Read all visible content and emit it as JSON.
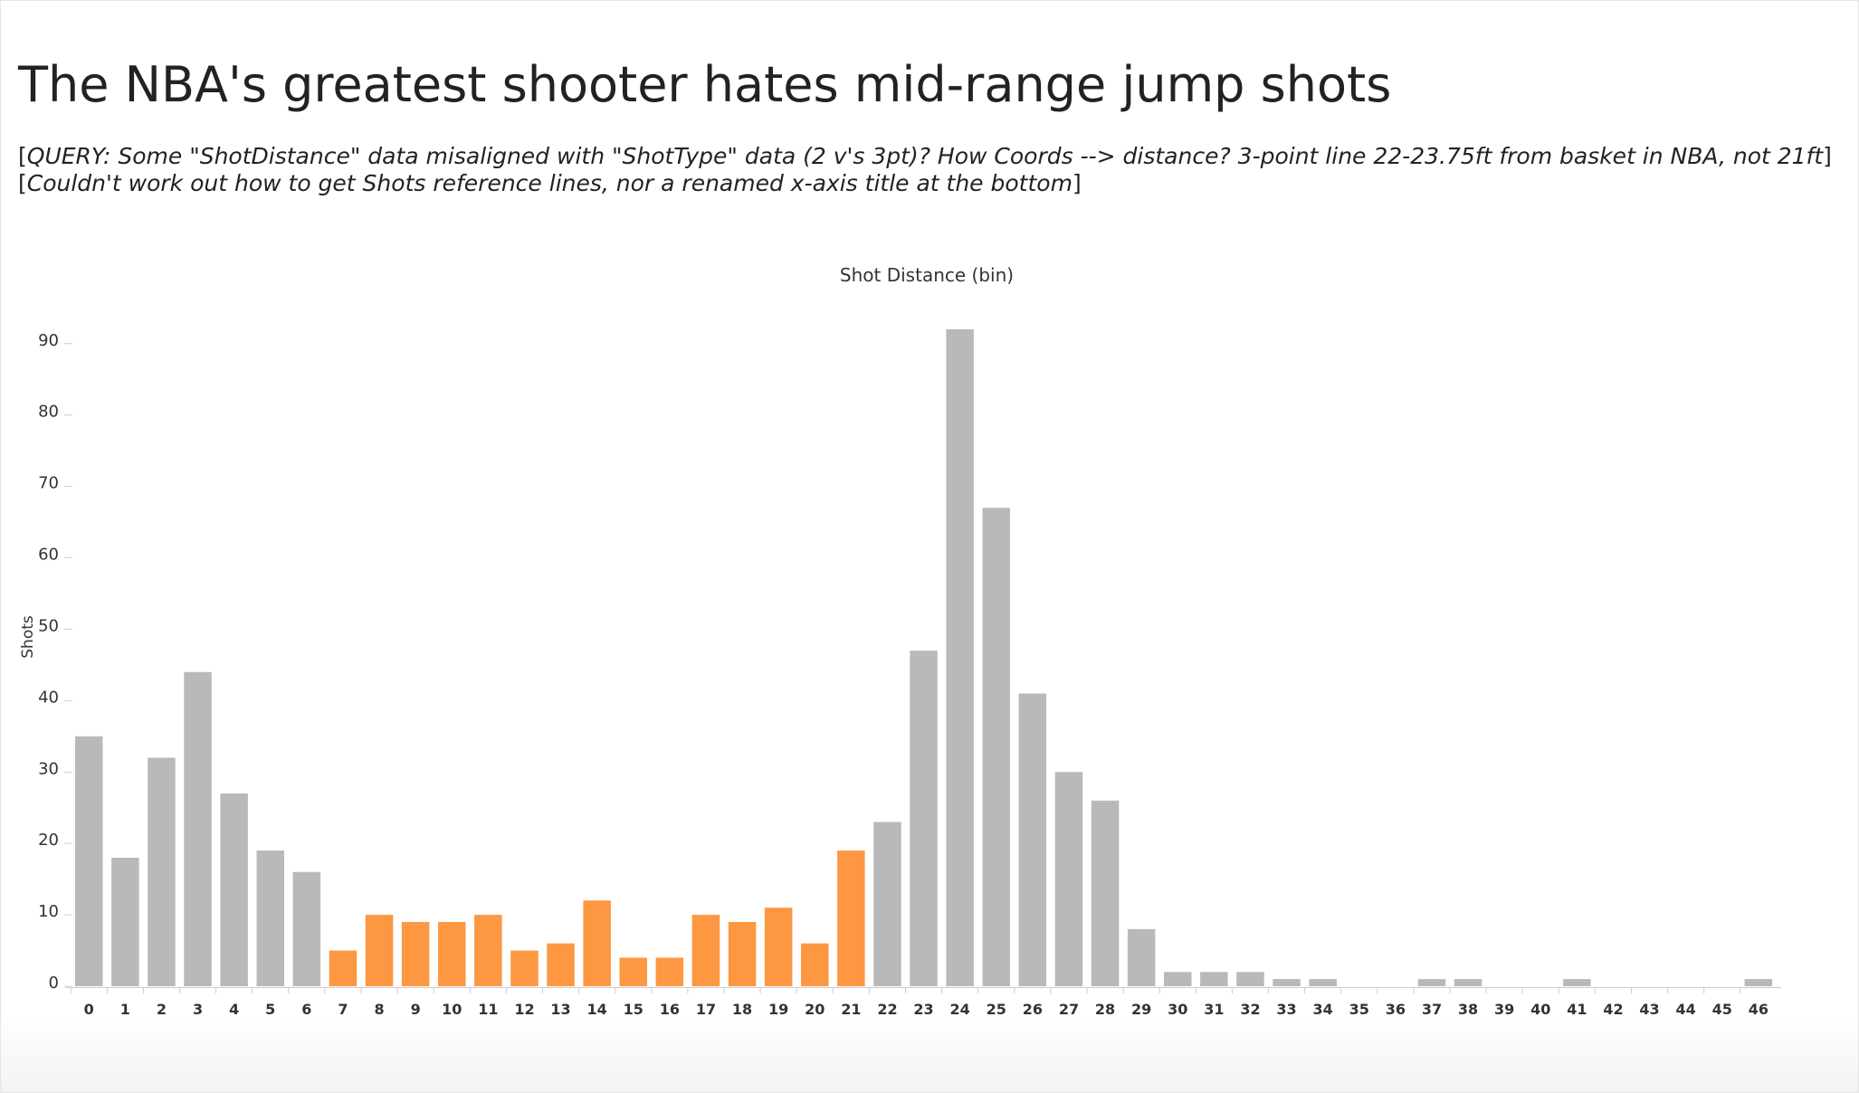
{
  "title": "The NBA's greatest shooter hates mid-range jump shots",
  "notes": {
    "line1_open": "[",
    "line1_italic": "QUERY: Some \"ShotDistance\" data misaligned with \"ShotType\" data (2 v's 3pt)? How Coords --> distance? 3-point line 22-23.75ft from basket in NBA, not 21ft",
    "line1_close": "]",
    "line2_open": "[",
    "line2_italic": "Couldn't work out how to get Shots reference lines, nor a renamed x-axis title at the bottom",
    "line2_close": "]"
  },
  "colors": {
    "gray_bar": "#b9b9b9",
    "orange_bar": "#fd9741",
    "axis_text": "#333333",
    "axis_line": "#cccccc"
  },
  "chart_data": {
    "type": "bar",
    "title": "Shot Distance (bin)",
    "xlabel": "",
    "ylabel": "Shots",
    "ylim": [
      0,
      92
    ],
    "yticks": [
      0,
      10,
      20,
      30,
      40,
      50,
      60,
      70,
      80,
      90
    ],
    "grid": false,
    "categories": [
      "0",
      "1",
      "2",
      "3",
      "4",
      "5",
      "6",
      "7",
      "8",
      "9",
      "10",
      "11",
      "12",
      "13",
      "14",
      "15",
      "16",
      "17",
      "18",
      "19",
      "20",
      "21",
      "22",
      "23",
      "24",
      "25",
      "26",
      "27",
      "28",
      "29",
      "30",
      "31",
      "32",
      "33",
      "34",
      "35",
      "36",
      "37",
      "38",
      "39",
      "40",
      "41",
      "42",
      "43",
      "44",
      "45",
      "46"
    ],
    "values": [
      35,
      18,
      32,
      44,
      27,
      19,
      16,
      5,
      10,
      9,
      9,
      10,
      5,
      6,
      12,
      4,
      4,
      10,
      9,
      11,
      6,
      19,
      23,
      47,
      92,
      67,
      41,
      30,
      26,
      8,
      2,
      2,
      2,
      1,
      1,
      0,
      0,
      1,
      1,
      0,
      0,
      1,
      0,
      0,
      0,
      0,
      1
    ],
    "highlight_range": [
      7,
      21
    ]
  }
}
